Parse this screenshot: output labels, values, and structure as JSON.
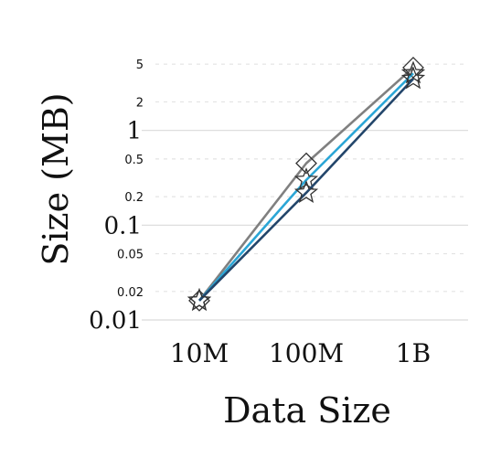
{
  "chart_data": {
    "type": "line",
    "title": "",
    "xlabel": "Data Size",
    "ylabel": "Size (MB)",
    "yscale": "log",
    "ylim": [
      0.01,
      6
    ],
    "categories": [
      "10M",
      "100M",
      "1B"
    ],
    "y_major_ticks": [
      {
        "value": 0.01,
        "label": "0.01"
      },
      {
        "value": 0.1,
        "label": "0.1"
      },
      {
        "value": 1,
        "label": "1"
      }
    ],
    "y_minor_ticks": [
      {
        "value": 0.02,
        "label": "0.02"
      },
      {
        "value": 0.05,
        "label": "0.05"
      },
      {
        "value": 0.2,
        "label": "0.2"
      },
      {
        "value": 0.5,
        "label": "0.5"
      },
      {
        "value": 2,
        "label": "2"
      },
      {
        "value": 5,
        "label": "5"
      }
    ],
    "grid": true,
    "legend": "none",
    "series": [
      {
        "values": [
          0.016,
          0.45,
          4.6
        ],
        "marker": "diamond",
        "color": "#808080"
      },
      {
        "values": [
          0.016,
          0.3,
          4.0
        ],
        "marker": "star",
        "color": "#2ba6d6"
      },
      {
        "values": [
          0.016,
          0.22,
          3.5
        ],
        "marker": "star",
        "color": "#23466b"
      }
    ]
  }
}
